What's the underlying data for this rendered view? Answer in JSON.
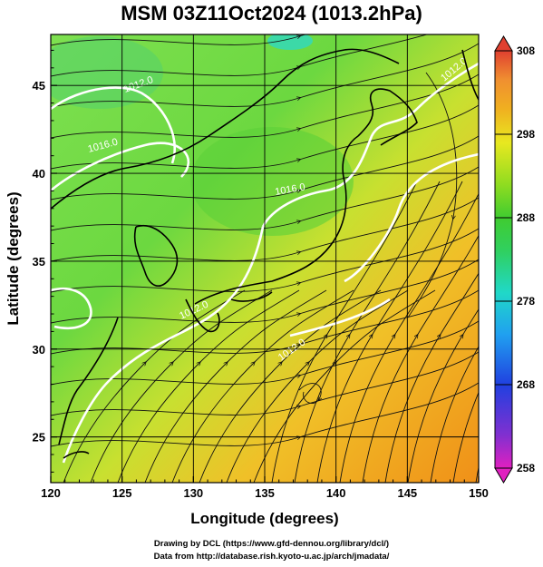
{
  "title": "MSM 03Z11Oct2024 (1013.2hPa)",
  "x_axis": {
    "label": "Longitude (degrees)",
    "range": [
      120,
      150
    ],
    "ticks": [
      120,
      125,
      130,
      135,
      140,
      145,
      150
    ],
    "tick_labels": [
      "120",
      "125",
      "130",
      "135",
      "140",
      "145",
      "150"
    ]
  },
  "y_axis": {
    "label": "Latitude  (degrees)",
    "range": [
      22.4,
      47.9
    ],
    "ticks": [
      25,
      30,
      35,
      40,
      45
    ],
    "tick_labels": [
      "25",
      "30",
      "35",
      "40",
      "45"
    ]
  },
  "colorbar": {
    "range": [
      258,
      308
    ],
    "ticks": [
      258,
      268,
      278,
      288,
      298,
      308
    ],
    "tick_labels": [
      "258",
      "268",
      "278",
      "288",
      "298",
      "308"
    ],
    "colors": [
      "#e020c0",
      "#8030d0",
      "#2040e0",
      "#20a0f0",
      "#20d8c8",
      "#30d060",
      "#40cc30",
      "#90dc20",
      "#e8e820",
      "#f0b020",
      "#f09030",
      "#e04030"
    ]
  },
  "isobar_labels": [
    "1012.0",
    "1016.0",
    "1016.0",
    "1012.0",
    "1012.0",
    "1012.0"
  ],
  "credits": {
    "line1": "Drawing by DCL (https://www.gfd-dennou.org/library/dcl/)",
    "line2": "Data from http://database.rish.kyoto-u.ac.jp/arch/jmadata/"
  },
  "map_features": [
    "temperature-field",
    "wind-streamlines",
    "isobars",
    "coastlines",
    "lat-lon-grid"
  ],
  "colors": {
    "isobar": "#ffffff",
    "coastline": "#000000",
    "streamline": "#111111",
    "grid": "#000000"
  }
}
